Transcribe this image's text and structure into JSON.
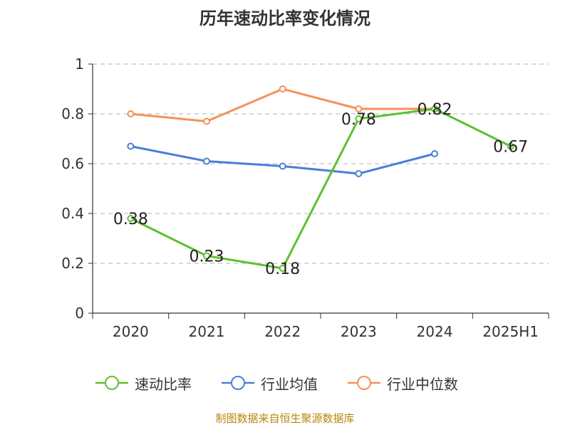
{
  "chart_data": {
    "type": "line",
    "title": "历年速动比率变化情况",
    "categories": [
      "2020",
      "2021",
      "2022",
      "2023",
      "2024",
      "2025H1"
    ],
    "ylim": [
      0,
      1
    ],
    "yticks": [
      "0",
      "0.2",
      "0.4",
      "0.6",
      "0.8",
      "1"
    ],
    "grid": true,
    "legend_position": "bottom",
    "series": [
      {
        "name": "速动比率",
        "color": "#5cc12f",
        "values": [
          0.38,
          0.23,
          0.18,
          0.78,
          0.82,
          0.67
        ],
        "labels": [
          "0.38",
          "0.23",
          "0.18",
          "0.78",
          "0.82",
          "0.67"
        ]
      },
      {
        "name": "行业均值",
        "color": "#4a7fd6",
        "values": [
          0.67,
          0.61,
          0.59,
          0.56,
          0.64,
          null
        ]
      },
      {
        "name": "行业中位数",
        "color": "#f5915a",
        "values": [
          0.8,
          0.77,
          0.9,
          0.82,
          0.82,
          null
        ]
      }
    ]
  },
  "footer": {
    "source": "制图数据来自恒生聚源数据库"
  }
}
